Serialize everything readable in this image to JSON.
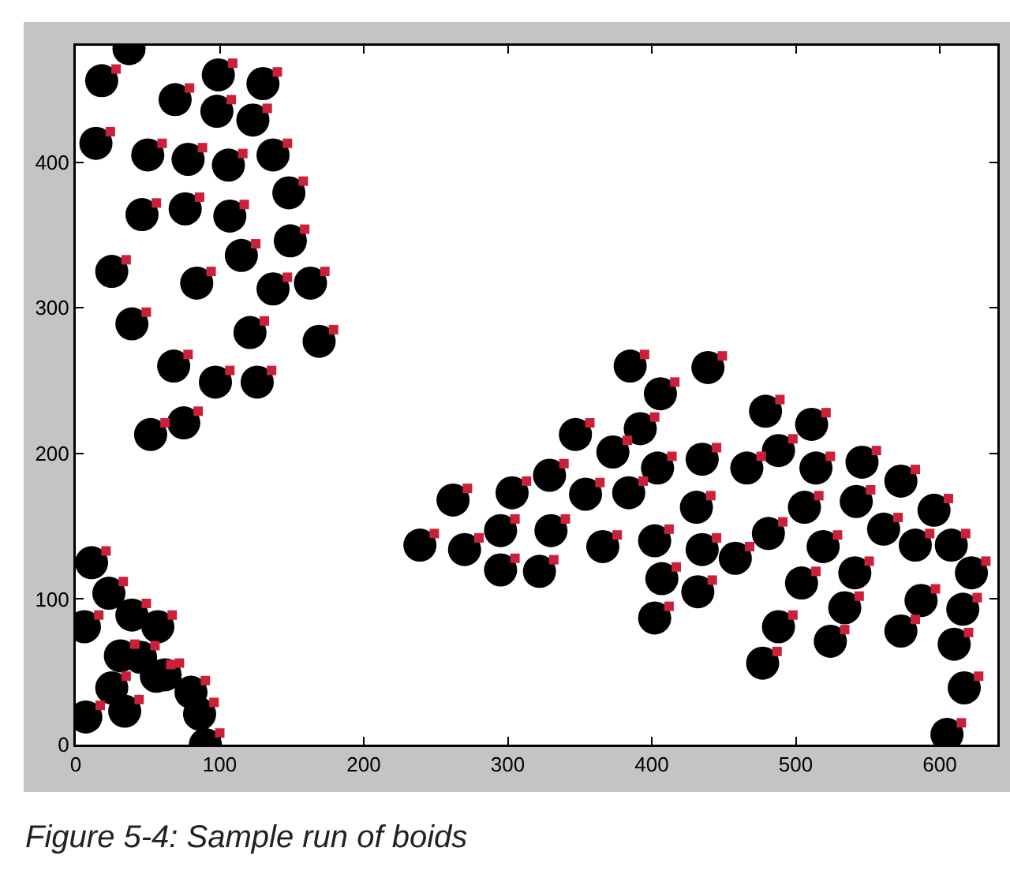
{
  "chart_data": {
    "type": "scatter",
    "annotations": [
      "Figure 5-4: Sample run of boids"
    ],
    "xlim": [
      0,
      640
    ],
    "ylim": [
      0,
      480
    ],
    "xticks": [
      0,
      100,
      200,
      300,
      400,
      500,
      600
    ],
    "yticks": [
      0,
      100,
      200,
      300,
      400
    ],
    "series": [
      {
        "color": "#000000",
        "marker": "circle",
        "x": [
          37,
          18,
          69,
          99,
          98,
          130,
          123,
          14,
          50,
          78,
          106,
          137,
          148,
          46,
          76,
          107,
          115,
          149,
          25,
          84,
          137,
          163,
          39,
          121,
          169,
          68,
          97,
          126,
          75,
          52,
          11,
          23,
          6,
          39,
          57,
          31,
          45,
          56,
          62,
          25,
          80,
          34,
          86,
          7,
          90,
          385,
          406,
          347,
          392,
          373,
          329,
          404,
          262,
          303,
          354,
          384,
          295,
          330,
          239,
          270,
          366,
          402,
          295,
          322,
          407,
          402,
          439,
          479,
          511,
          435,
          466,
          488,
          514,
          546,
          573,
          431,
          506,
          542,
          596,
          435,
          458,
          481,
          519,
          561,
          583,
          608,
          622,
          432,
          504,
          541,
          534,
          587,
          616,
          488,
          524,
          573,
          610,
          477,
          617,
          605
        ],
        "values": [
          478,
          456,
          443,
          460,
          435,
          454,
          429,
          413,
          405,
          402,
          398,
          405,
          379,
          364,
          368,
          363,
          336,
          346,
          325,
          317,
          313,
          317,
          289,
          283,
          277,
          260,
          249,
          249,
          221,
          213,
          125,
          104,
          81,
          89,
          81,
          61,
          60,
          47,
          48,
          39,
          36,
          23,
          21,
          19,
          0,
          260,
          241,
          213,
          217,
          201,
          185,
          190,
          168,
          173,
          172,
          173,
          147,
          147,
          137,
          134,
          136,
          140,
          120,
          119,
          114,
          87,
          259,
          229,
          220,
          196,
          190,
          202,
          190,
          194,
          181,
          163,
          163,
          167,
          161,
          134,
          128,
          145,
          136,
          148,
          137,
          137,
          118,
          105,
          111,
          118,
          94,
          99,
          93,
          81,
          71,
          78,
          69,
          56,
          39,
          7
        ]
      },
      {
        "color": "#cc1f3a",
        "marker": "square",
        "x": [
          28,
          79,
          109,
          108,
          140,
          133,
          24,
          60,
          88,
          116,
          147,
          158,
          56,
          86,
          117,
          125,
          159,
          35,
          94,
          147,
          173,
          49,
          131,
          179,
          78,
          107,
          136,
          85,
          62,
          21,
          33,
          16,
          49,
          67,
          41,
          55,
          66,
          72,
          35,
          90,
          44,
          96,
          17,
          100,
          395,
          416,
          357,
          402,
          383,
          339,
          414,
          272,
          313,
          364,
          394,
          305,
          340,
          249,
          280,
          376,
          412,
          305,
          332,
          417,
          412,
          449,
          489,
          521,
          445,
          476,
          498,
          524,
          556,
          583,
          441,
          516,
          552,
          606,
          445,
          468,
          491,
          529,
          571,
          593,
          618,
          632,
          442,
          514,
          551,
          544,
          597,
          626,
          498,
          534,
          583,
          620,
          487,
          627,
          615
        ],
        "values": [
          464,
          451,
          468,
          443,
          462,
          437,
          421,
          413,
          410,
          406,
          413,
          387,
          372,
          376,
          371,
          344,
          354,
          333,
          325,
          321,
          325,
          297,
          291,
          285,
          268,
          257,
          257,
          229,
          221,
          133,
          112,
          89,
          97,
          89,
          69,
          68,
          55,
          56,
          47,
          44,
          31,
          29,
          27,
          8,
          268,
          249,
          221,
          225,
          209,
          193,
          198,
          176,
          181,
          180,
          181,
          155,
          155,
          145,
          142,
          144,
          148,
          128,
          127,
          122,
          95,
          267,
          237,
          228,
          204,
          198,
          210,
          198,
          202,
          189,
          171,
          171,
          175,
          169,
          142,
          136,
          153,
          144,
          156,
          145,
          145,
          126,
          113,
          119,
          126,
          102,
          107,
          101,
          89,
          79,
          86,
          77,
          64,
          47,
          15
        ]
      }
    ]
  }
}
